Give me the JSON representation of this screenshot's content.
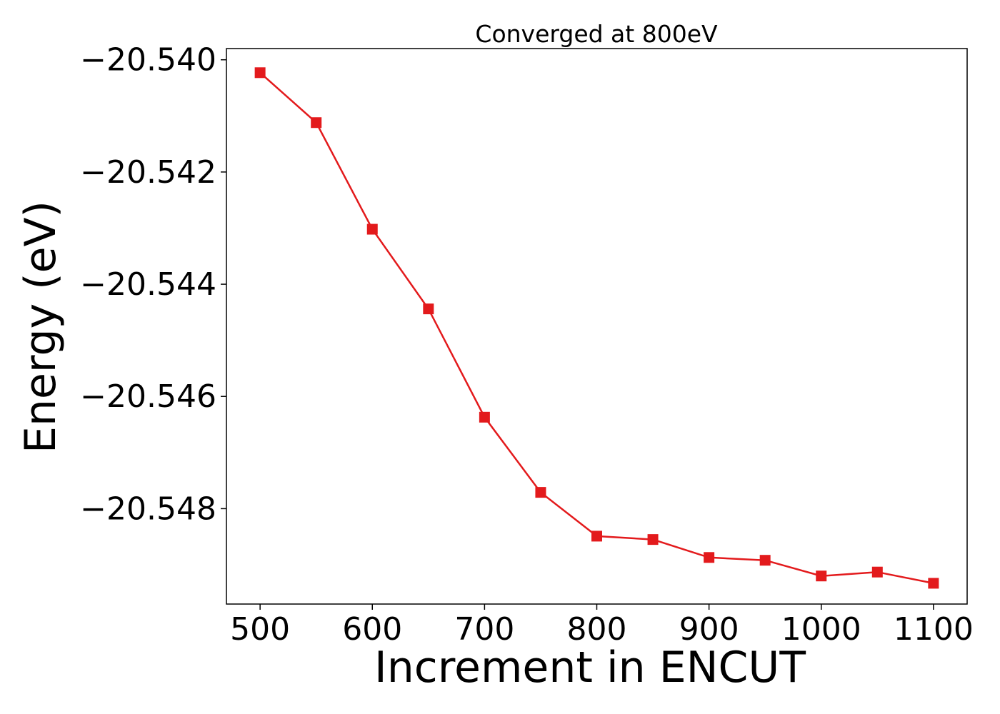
{
  "chart_data": {
    "type": "line",
    "title": "Converged at 800eV",
    "xlabel": "Increment in ENCUT",
    "ylabel": "Energy (eV)",
    "xlim": [
      470,
      1130
    ],
    "ylim": [
      -20.5497,
      -20.5398
    ],
    "x_ticks": [
      500,
      600,
      700,
      800,
      900,
      1000,
      1100
    ],
    "x_tick_labels": [
      "500",
      "600",
      "700",
      "800",
      "900",
      "1000",
      "1100"
    ],
    "y_ticks": [
      -20.54,
      -20.542,
      -20.544,
      -20.546,
      -20.548
    ],
    "y_tick_labels": [
      "−20.540",
      "−20.542",
      "−20.544",
      "−20.546",
      "−20.548"
    ],
    "grid": false,
    "legend": "none",
    "series": [
      {
        "color": "#e31a1c",
        "marker": "square",
        "x": [
          500,
          550,
          600,
          650,
          700,
          750,
          800,
          850,
          900,
          950,
          1000,
          1050,
          1100
        ],
        "y": [
          -20.54023,
          -20.54112,
          -20.54302,
          -20.54444,
          -20.54637,
          -20.54771,
          -20.54849,
          -20.54855,
          -20.54887,
          -20.54892,
          -20.5492,
          -20.54913,
          -20.54933
        ]
      }
    ]
  }
}
